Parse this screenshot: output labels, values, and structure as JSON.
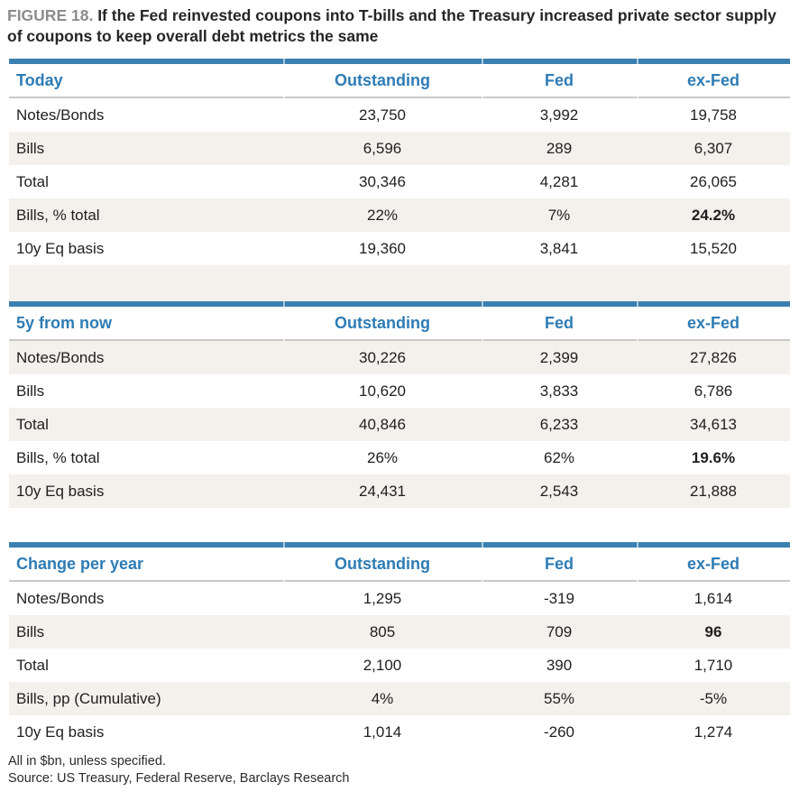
{
  "title": {
    "figure_label": "FIGURE 18.",
    "text": "If the Fed reinvested coupons into T-bills and the Treasury increased private sector supply of coupons to keep overall debt metrics the same"
  },
  "tables": [
    {
      "heading": "Today",
      "columns": [
        "Outstanding",
        "Fed",
        "ex-Fed"
      ],
      "rows": [
        {
          "label": "Notes/Bonds",
          "outstanding": "23,750",
          "fed": "3,992",
          "ex_fed": "19,758"
        },
        {
          "label": "Bills",
          "outstanding": "6,596",
          "fed": "289",
          "ex_fed": "6,307"
        },
        {
          "label": "Total",
          "outstanding": "30,346",
          "fed": "4,281",
          "ex_fed": "26,065"
        },
        {
          "label": "Bills, % total",
          "outstanding": "22%",
          "fed": "7%",
          "ex_fed": "24.2%"
        },
        {
          "label": "10y Eq basis",
          "outstanding": "19,360",
          "fed": "3,841",
          "ex_fed": "15,520"
        }
      ]
    },
    {
      "heading": "5y from now",
      "columns": [
        "Outstanding",
        "Fed",
        "ex-Fed"
      ],
      "rows": [
        {
          "label": "Notes/Bonds",
          "outstanding": "30,226",
          "fed": "2,399",
          "ex_fed": "27,826"
        },
        {
          "label": "Bills",
          "outstanding": "10,620",
          "fed": "3,833",
          "ex_fed": "6,786"
        },
        {
          "label": "Total",
          "outstanding": "40,846",
          "fed": "6,233",
          "ex_fed": "34,613"
        },
        {
          "label": "Bills, % total",
          "outstanding": "26%",
          "fed": "62%",
          "ex_fed": "19.6%"
        },
        {
          "label": "10y Eq basis",
          "outstanding": "24,431",
          "fed": "2,543",
          "ex_fed": "21,888"
        }
      ]
    },
    {
      "heading": "Change per year",
      "columns": [
        "Outstanding",
        "Fed",
        "ex-Fed"
      ],
      "rows": [
        {
          "label": "Notes/Bonds",
          "outstanding": "1,295",
          "fed": "-319",
          "ex_fed": "1,614"
        },
        {
          "label": "Bills",
          "outstanding": "805",
          "fed": "709",
          "ex_fed": "96"
        },
        {
          "label": "Total",
          "outstanding": "2,100",
          "fed": "390",
          "ex_fed": "1,710"
        },
        {
          "label": "Bills, pp (Cumulative)",
          "outstanding": "4%",
          "fed": "55%",
          "ex_fed": "-5%"
        },
        {
          "label": "10y Eq basis",
          "outstanding": "1,014",
          "fed": "-260",
          "ex_fed": "1,274"
        }
      ]
    }
  ],
  "footnotes": {
    "units": "All in $bn, unless specified.",
    "source": "Source: US Treasury, Federal Reserve, Barclays Research"
  },
  "colors": {
    "accent_blue": "#2e7cb5",
    "table_top_border_blue": "#3b80b0",
    "row_stripe_beige": "#f4f0ec",
    "header_rule_gray": "#c9c9c9",
    "figure_label_gray": "#8c8c8c"
  }
}
